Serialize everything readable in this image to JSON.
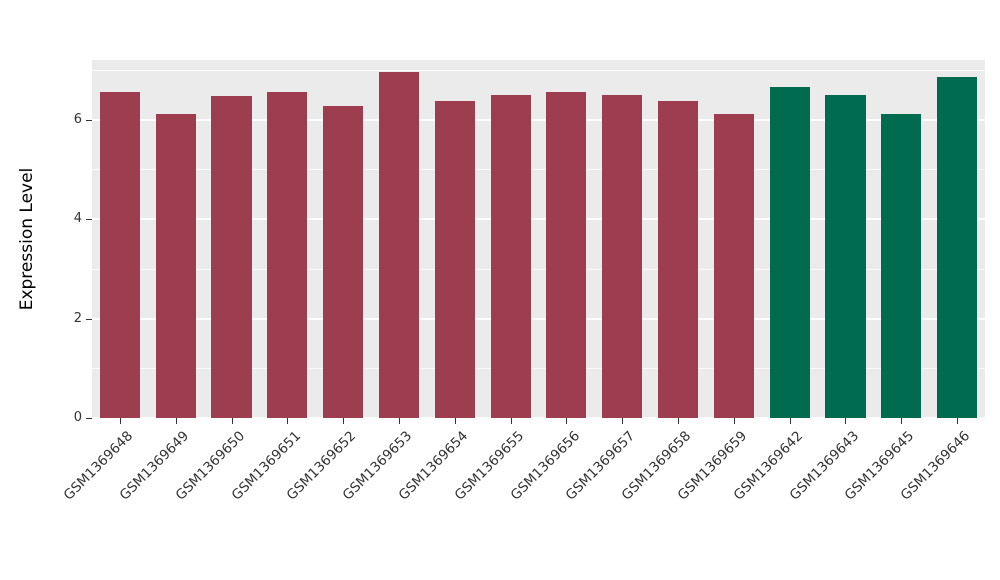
{
  "chart_data": {
    "type": "bar",
    "title": "",
    "xlabel": "",
    "ylabel": "Expression Level",
    "categories": [
      "GSM1369648",
      "GSM1369649",
      "GSM1369650",
      "GSM1369651",
      "GSM1369652",
      "GSM1369653",
      "GSM1369654",
      "GSM1369655",
      "GSM1369656",
      "GSM1369657",
      "GSM1369658",
      "GSM1369659",
      "GSM1369642",
      "GSM1369643",
      "GSM1369645",
      "GSM1369646"
    ],
    "values": [
      6.55,
      6.12,
      6.48,
      6.55,
      6.28,
      6.95,
      6.38,
      6.5,
      6.55,
      6.5,
      6.38,
      6.12,
      6.65,
      6.5,
      6.12,
      6.85
    ],
    "bar_colors": [
      "#9e3d50",
      "#9e3d50",
      "#9e3d50",
      "#9e3d50",
      "#9e3d50",
      "#9e3d50",
      "#9e3d50",
      "#9e3d50",
      "#9e3d50",
      "#9e3d50",
      "#9e3d50",
      "#9e3d50",
      "#006b4e",
      "#006b4e",
      "#006b4e",
      "#006b4e"
    ],
    "group_colors": {
      "group_1_maroon": "#9e3d50",
      "group_2_green": "#006b4e"
    },
    "yticks": [
      0,
      2,
      4,
      6
    ],
    "ylim": [
      0,
      7.2
    ],
    "grid": {
      "major": [
        0,
        2,
        4,
        6
      ],
      "minor": [
        1,
        3,
        5,
        7
      ],
      "color": "#ffffff"
    },
    "panel_background": "#ebebeb",
    "figure_background": "#ffffff",
    "legend": "none",
    "x_tick_rotation": 45
  }
}
